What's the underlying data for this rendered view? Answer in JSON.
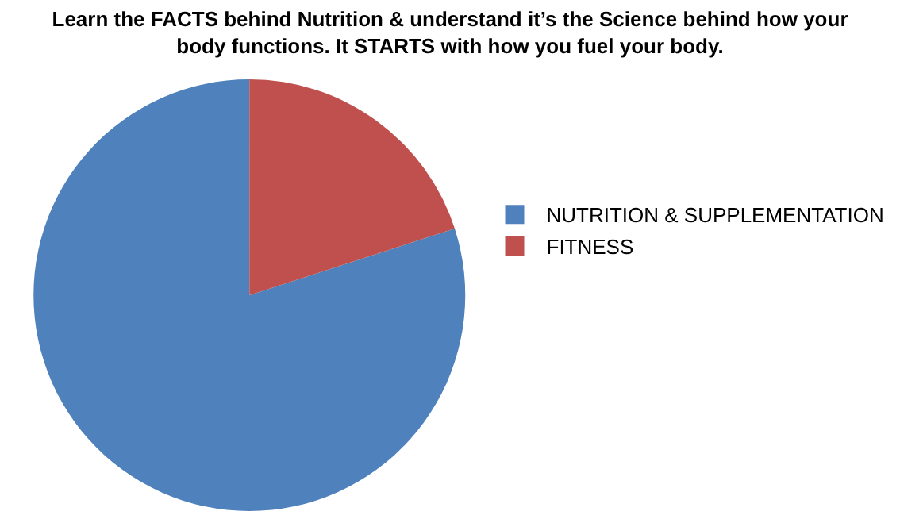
{
  "chart_data": {
    "type": "pie",
    "title": "Learn the FACTS behind Nutrition & understand it’s the Science behind how your body functions. It STARTS with how you fuel your body.",
    "categories": [
      "NUTRITION & SUPPLEMENTATION",
      "FITNESS"
    ],
    "values": [
      80,
      20
    ],
    "colors": [
      "#4f81bd",
      "#c0504d"
    ],
    "legend": "right"
  }
}
